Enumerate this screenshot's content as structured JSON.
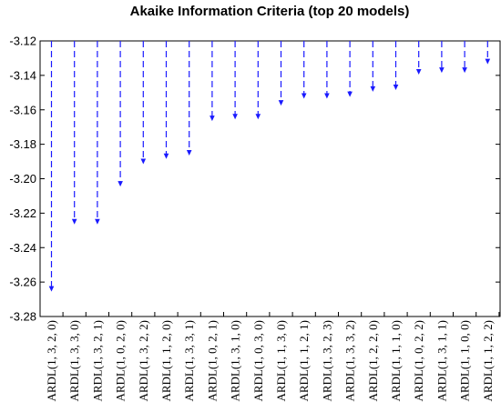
{
  "chart_data": {
    "type": "bar",
    "title": "Akaike Information Criteria (top 20 models)",
    "xlabel": "",
    "ylabel": "",
    "ylim": [
      -3.28,
      -3.12
    ],
    "yticks": [
      -3.12,
      -3.14,
      -3.16,
      -3.18,
      -3.2,
      -3.22,
      -3.24,
      -3.26,
      -3.28
    ],
    "ytick_labels": [
      "-3.12",
      "-3.14",
      "-3.16",
      "-3.18",
      "-3.20",
      "-3.22",
      "-3.24",
      "-3.26",
      "-3.28"
    ],
    "baseline": -3.12,
    "grid": false,
    "legend": "none",
    "series_color": "#1a1aff",
    "categories": [
      "ARDL(1, 3, 2, 0)",
      "ARDL(1, 3, 3, 0)",
      "ARDL(1, 3, 2, 1)",
      "ARDL(1, 0, 2, 0)",
      "ARDL(1, 3, 2, 2)",
      "ARDL(1, 1, 2, 0)",
      "ARDL(1, 3, 3, 1)",
      "ARDL(1, 0, 2, 1)",
      "ARDL(1, 3, 1, 0)",
      "ARDL(1, 0, 3, 0)",
      "ARDL(1, 1, 3, 0)",
      "ARDL(1, 1, 2, 1)",
      "ARDL(1, 3, 2, 3)",
      "ARDL(1, 3, 3, 2)",
      "ARDL(1, 2, 2, 0)",
      "ARDL(1, 1, 1, 0)",
      "ARDL(1, 0, 2, 2)",
      "ARDL(1, 3, 1, 1)",
      "ARDL(1, 1, 0, 0)",
      "ARDL(1, 1, 2, 2)"
    ],
    "values": [
      -3.265,
      -3.226,
      -3.226,
      -3.204,
      -3.191,
      -3.188,
      -3.186,
      -3.166,
      -3.165,
      -3.165,
      -3.157,
      -3.153,
      -3.153,
      -3.152,
      -3.149,
      -3.148,
      -3.139,
      -3.138,
      -3.138,
      -3.133
    ]
  }
}
